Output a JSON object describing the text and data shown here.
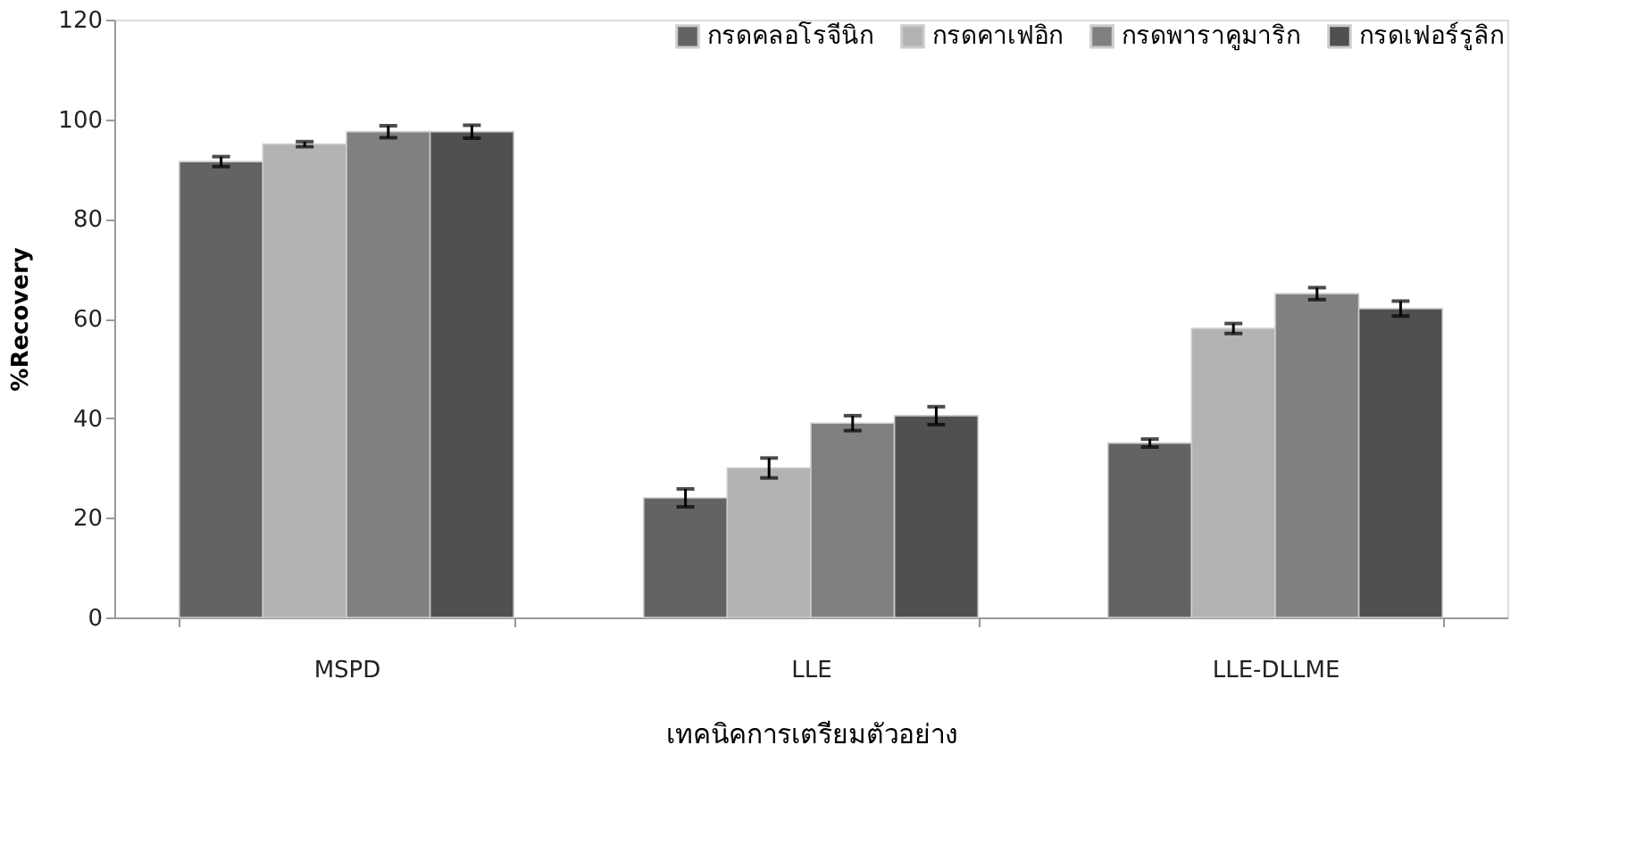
{
  "chart_data": {
    "type": "bar",
    "xlabel": "เทคนิคการเตรียมตัวอย่าง",
    "ylabel": "%Recovery",
    "categories": [
      "MSPD",
      "LLE",
      "LLE-DLLME"
    ],
    "series": [
      {
        "name": "กรดคลอโรจีนิก",
        "color": "#636363",
        "values": [
          91.5,
          24,
          35
        ],
        "errors": [
          1,
          1.8,
          0.8
        ]
      },
      {
        "name": "กรดคาเฟอิก",
        "color": "#b3b3b3",
        "values": [
          95,
          30,
          58
        ],
        "errors": [
          0.5,
          2,
          1
        ]
      },
      {
        "name": "กรดพาราคูมาริก",
        "color": "#808080",
        "values": [
          97.5,
          39,
          65
        ],
        "errors": [
          1.2,
          1.5,
          1.2
        ]
      },
      {
        "name": "กรดเฟอร์รูลิก",
        "color": "#505050",
        "values": [
          97.5,
          40.5,
          62
        ],
        "errors": [
          1.3,
          1.8,
          1.5
        ]
      }
    ],
    "ylim": [
      0,
      120
    ],
    "yticks": [
      0,
      20,
      40,
      60,
      80,
      100,
      120
    ],
    "grid": false,
    "legend": "top right"
  }
}
